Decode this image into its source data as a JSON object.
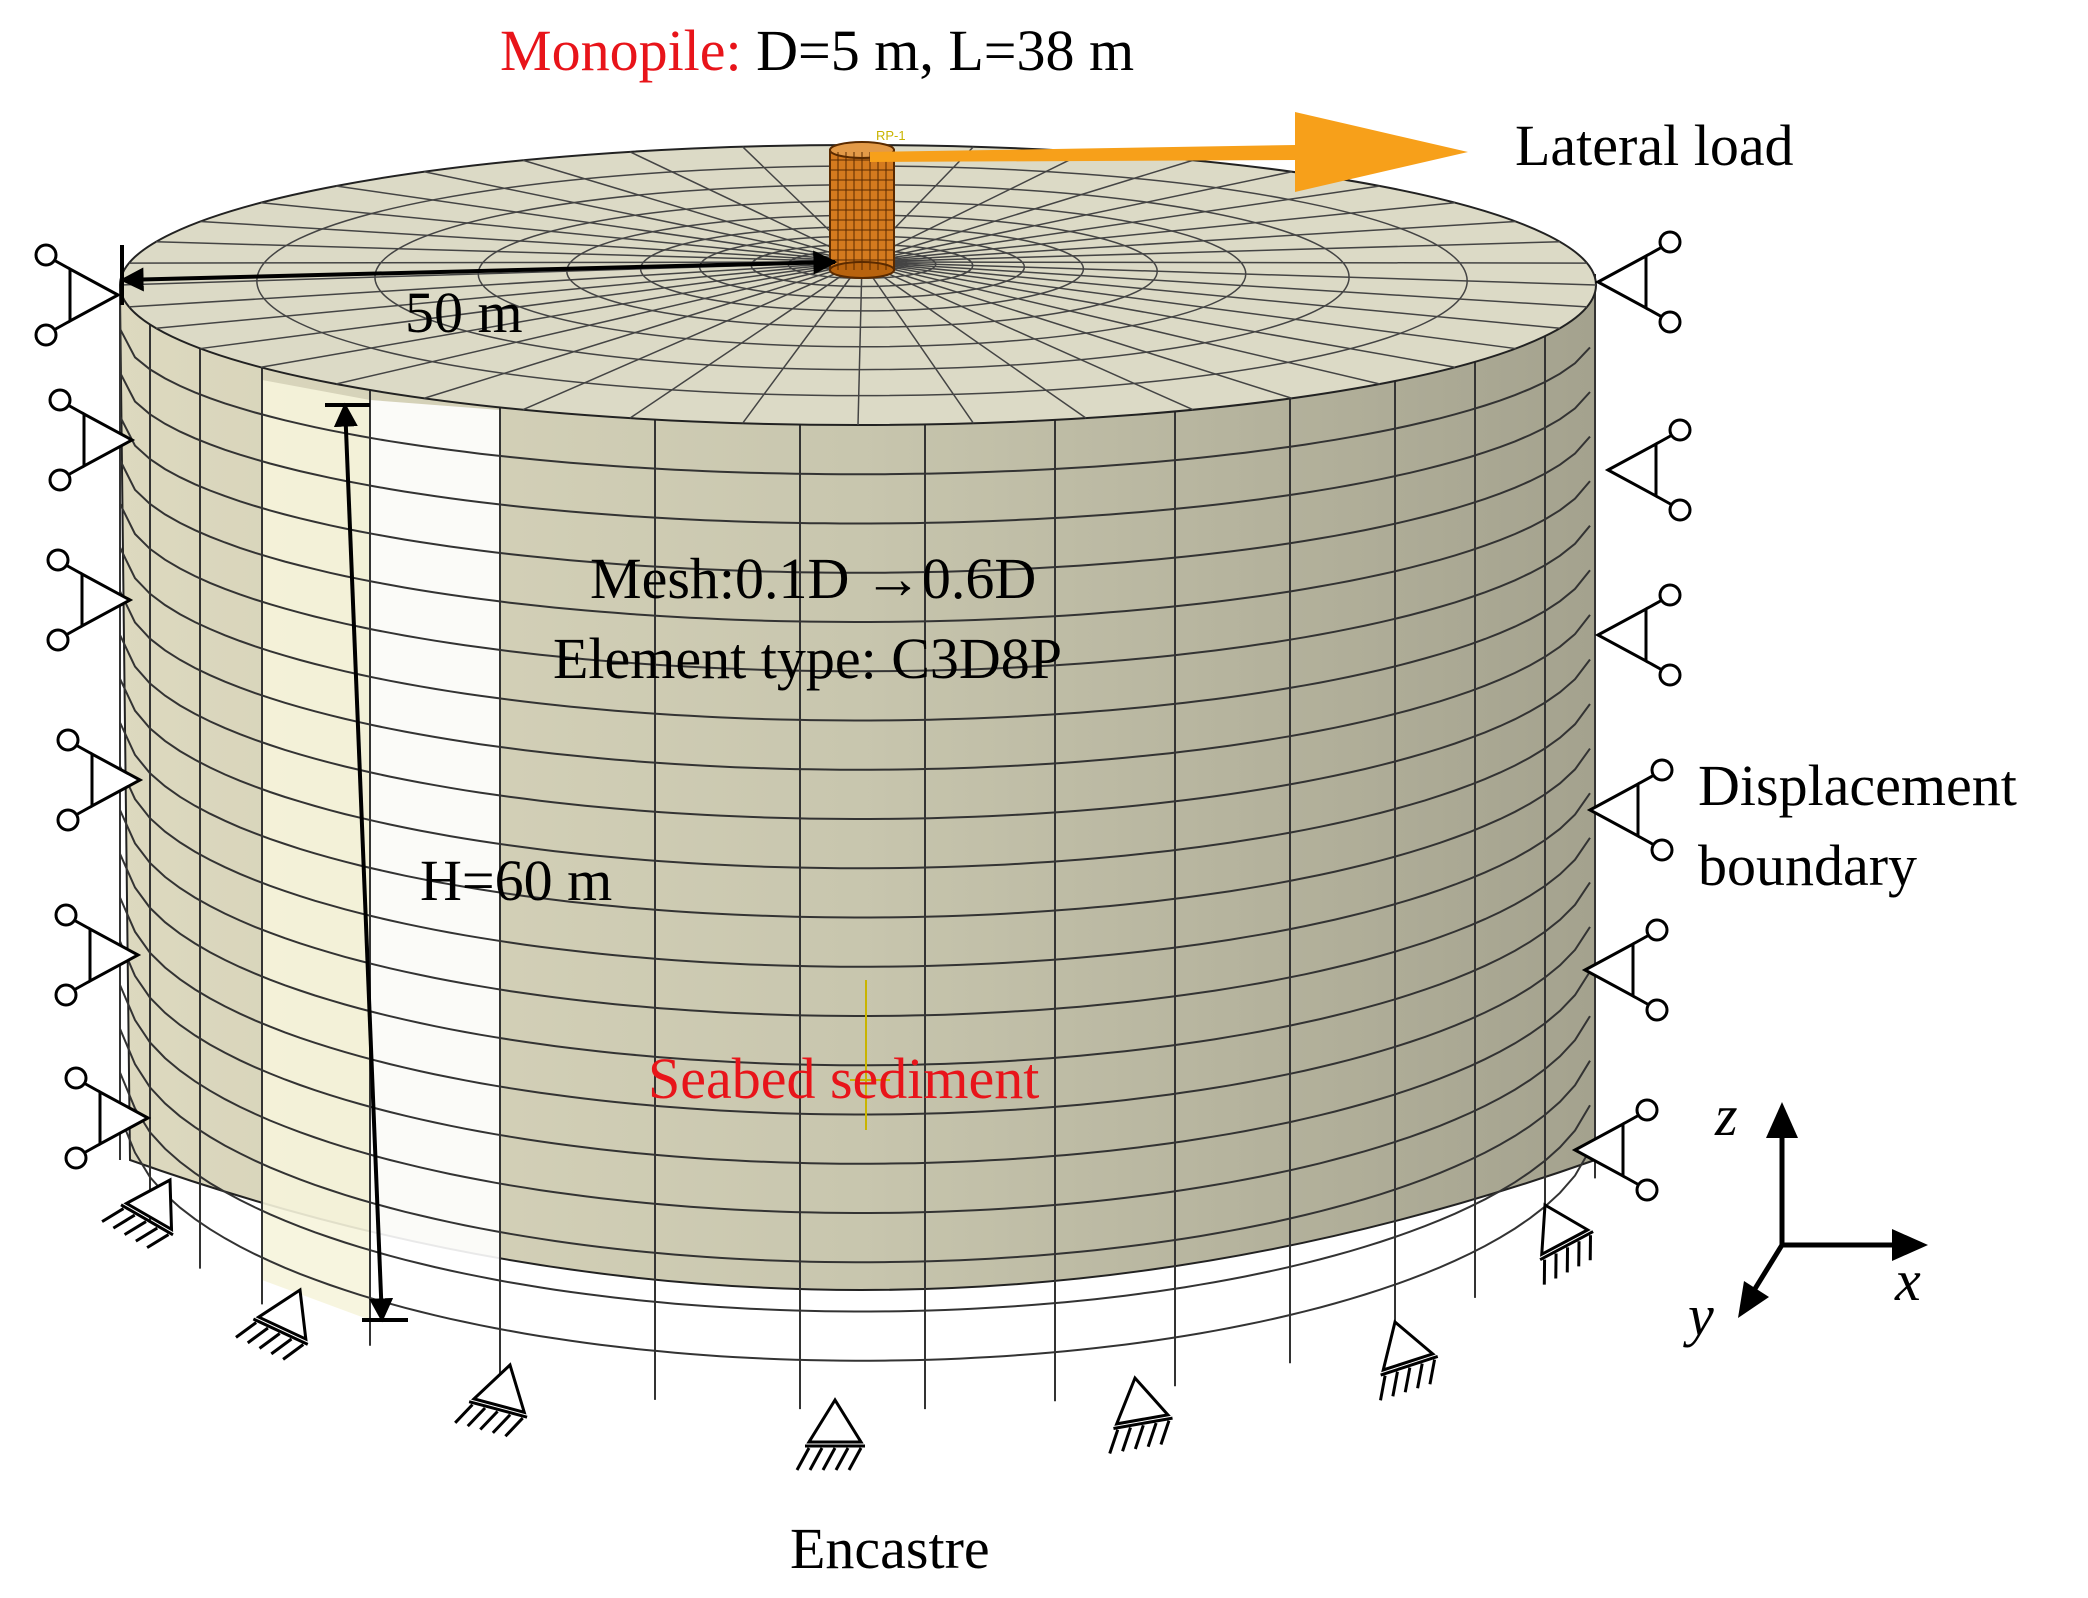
{
  "labels": {
    "monopile_prefix": "Monopile:",
    "monopile_dims": " D=5 m, L=38 m",
    "lateral_load": "Lateral load",
    "radius": "50 m",
    "mesh": "Mesh:0.1D →0.6D",
    "element_type": "Element type: C3D8P",
    "height": "H=60 m",
    "seabed": "Seabed sediment",
    "displacement_line1": "Displacement",
    "displacement_line2": "boundary",
    "encastre": "Encastre",
    "ref_point": "RP-1"
  },
  "axes": {
    "z": "z",
    "x": "x",
    "y": "y"
  },
  "colors": {
    "soil_face": "#cdcbb4",
    "soil_top": "#dcdac6",
    "soil_highlight": "#f5f4e2",
    "mesh_line": "#2a2a2a",
    "pile": "#d47a1e",
    "load_arrow": "#f7a01a",
    "emphasis_red": "#e8141a"
  },
  "icons": [
    "roller-support-icon",
    "encastre-support-icon",
    "load-arrow-icon"
  ]
}
